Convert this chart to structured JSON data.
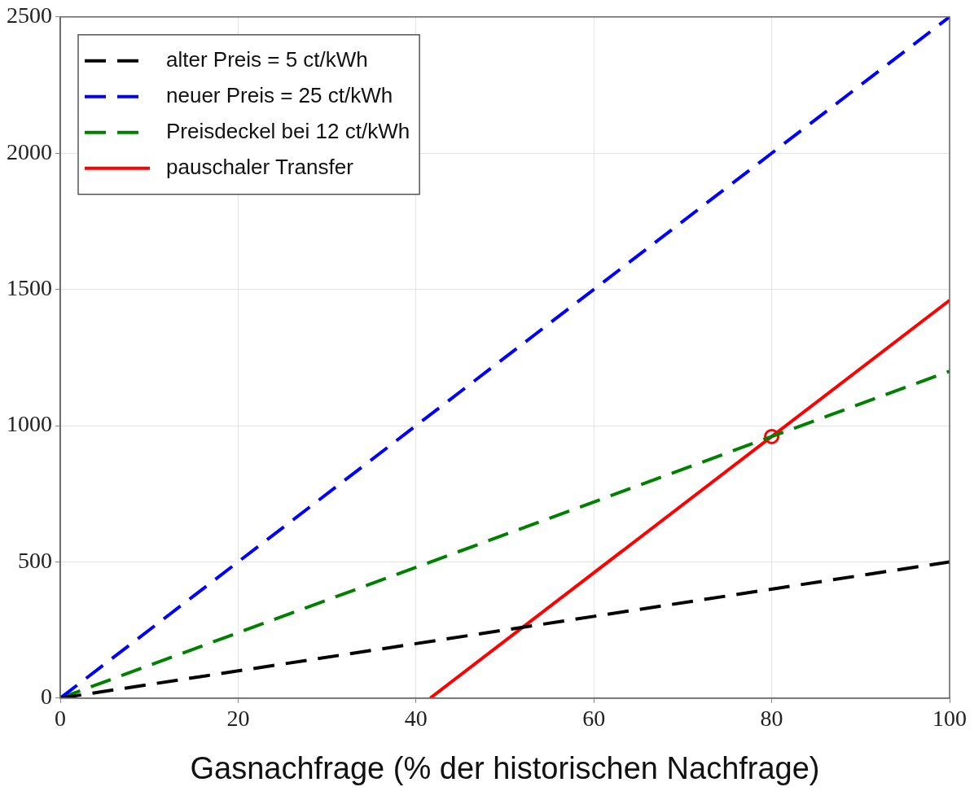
{
  "chart_data": {
    "type": "line",
    "xlabel": "Gasnachfrage (% der historischen Nachfrage)",
    "xlim": [
      0,
      100
    ],
    "xticks": [
      0,
      20,
      40,
      60,
      80,
      100
    ],
    "ylim": [
      0,
      2500
    ],
    "yticks": [
      0,
      500,
      1000,
      1500,
      2000,
      2500
    ],
    "grid": true,
    "legend": "top left",
    "marker": "none",
    "series": [
      {
        "name": "alter Preis = 5 ct/kWh",
        "color": "#000000",
        "line_style": "dashed",
        "x": [
          0,
          100
        ],
        "values": [
          0,
          500
        ]
      },
      {
        "name": "neuer Preis = 25 ct/kWh",
        "color": "#0000ff",
        "line_style": "dashed",
        "x": [
          0,
          100
        ],
        "values": [
          0,
          2500
        ]
      },
      {
        "name": "Preisdeckel bei 12 ct/kWh",
        "color": "#008000",
        "line_style": "dashed",
        "x": [
          0,
          100
        ],
        "values": [
          0,
          1200
        ]
      },
      {
        "name": "pauschaler Transfer",
        "color": "#ff0000",
        "line_style": "solid",
        "x": [
          41.6,
          100
        ],
        "values": [
          0,
          1460
        ]
      },
      {
        "type": "scatter",
        "color": "#ff0000",
        "marker": "circle",
        "x": [
          80
        ],
        "values": [
          960
        ]
      }
    ]
  }
}
